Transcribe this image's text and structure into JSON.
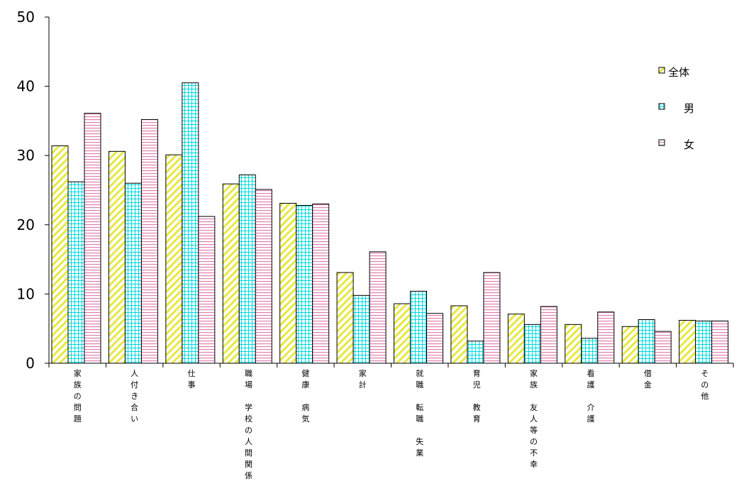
{
  "chart_data": {
    "type": "bar",
    "ylim": [
      0,
      50
    ],
    "yticks": [
      0,
      10,
      20,
      30,
      40,
      50
    ],
    "grid": false,
    "legend_position": "right",
    "categories": [
      "家族の問題",
      "人付き合い",
      "仕事",
      "職場・学校の人間関係",
      "健康・病気",
      "家計",
      "就職・転職・失業",
      "育児・教育",
      "家族・友人等の不幸",
      "看護・介護",
      "借金",
      "その他"
    ],
    "category_display": [
      "家族の問題",
      "人付き合い",
      "仕事",
      "職場 学校の人間関係",
      "健康 病気",
      "家計",
      "就職 転職 失業",
      "育児 教育",
      "家族 友人等の不幸",
      "看護 介護",
      "借金",
      "その他"
    ],
    "series": [
      {
        "name": "全体",
        "values": [
          31.4,
          30.6,
          30.1,
          25.9,
          23.1,
          13.1,
          8.6,
          8.3,
          7.1,
          5.6,
          5.3,
          6.2
        ],
        "color": "#e8e840"
      },
      {
        "name": "男",
        "values": [
          26.2,
          26.0,
          40.5,
          27.2,
          22.8,
          9.8,
          10.4,
          3.2,
          5.6,
          3.6,
          6.3,
          6.1
        ],
        "color": "#00d8e0"
      },
      {
        "name": "女",
        "values": [
          36.1,
          35.2,
          21.2,
          25.1,
          23.0,
          16.1,
          7.2,
          13.1,
          8.2,
          7.4,
          4.6,
          6.1
        ],
        "color": "#e080b0"
      }
    ]
  }
}
